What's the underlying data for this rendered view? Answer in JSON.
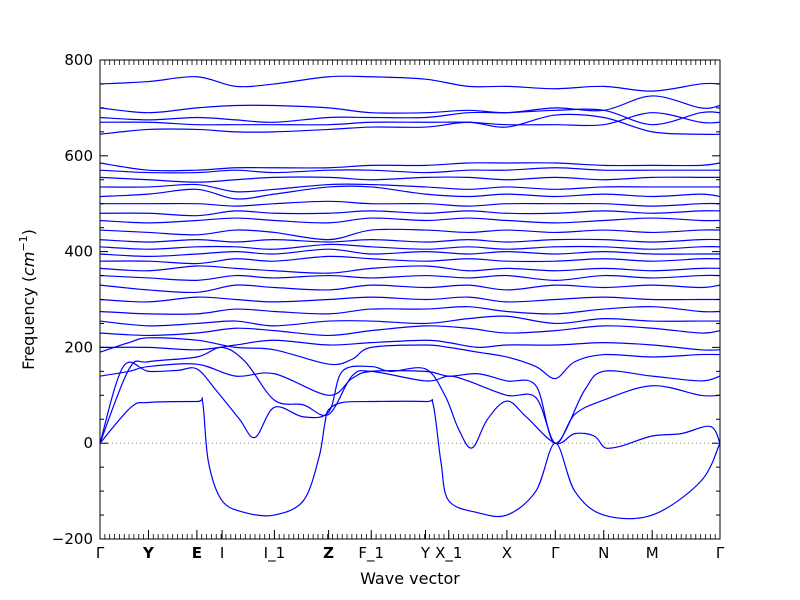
{
  "chart_data": {
    "type": "line",
    "title": "",
    "xlabel": "Wave vector",
    "ylabel": "Frequency (cm⁻¹)",
    "ylabel_main": "Frequency (",
    "ylabel_unit": "cm",
    "ylabel_exp": "−1",
    "ylabel_close": ")",
    "ylim": [
      -200,
      800
    ],
    "xlim": [
      0,
      32
    ],
    "yticks": [
      -200,
      0,
      200,
      400,
      600,
      800
    ],
    "grid": false,
    "legend": "none",
    "zero_line": "dotted",
    "colors": {
      "band": "#0000ff",
      "axis": "#000000",
      "zero": "#808080"
    },
    "xticks": [
      {
        "x": 0,
        "label": "Γ",
        "bold": false
      },
      {
        "x": 2.5,
        "label": "Y",
        "bold": true
      },
      {
        "x": 5,
        "label": "E",
        "bold": true
      },
      {
        "x": 6.3,
        "label": "I",
        "bold": false
      },
      {
        "x": 9,
        "label": "I_1",
        "bold": false
      },
      {
        "x": 11.8,
        "label": "Z",
        "bold": true
      },
      {
        "x": 14,
        "label": "F_1",
        "bold": false
      },
      {
        "x": 16.8,
        "label": "Y",
        "bold": false
      },
      {
        "x": 18,
        "label": "X_1",
        "bold": false
      },
      {
        "x": 21,
        "label": "X",
        "bold": false
      },
      {
        "x": 23.5,
        "label": "Γ",
        "bold": false
      },
      {
        "x": 26,
        "label": "N",
        "bold": false
      },
      {
        "x": 28.5,
        "label": "M",
        "bold": false
      },
      {
        "x": 32,
        "label": "Γ",
        "bold": false
      }
    ],
    "series": [
      {
        "x": [
          0,
          1.6,
          2.5,
          5,
          5.3,
          5.6,
          6.3,
          7.5,
          9,
          10.5,
          11.3,
          11.6,
          11.8,
          12.5,
          14,
          16.8,
          17.2,
          17.6,
          18,
          19.5,
          21,
          22.5,
          23.5,
          24.5,
          26,
          28.5,
          31,
          32
        ],
        "y": [
          0,
          75,
          85,
          87,
          85,
          -40,
          -120,
          -145,
          -150,
          -120,
          -30,
          40,
          70,
          85,
          87,
          87,
          80,
          -40,
          -120,
          -145,
          -150,
          -100,
          0,
          -100,
          -150,
          -150,
          -80,
          0
        ]
      },
      {
        "x": [
          0,
          1.2,
          2.5,
          4,
          5,
          6,
          7.2,
          8,
          9,
          10.5,
          11.8,
          12.5,
          14,
          15,
          16.8,
          17.8,
          18.5,
          19.2,
          20,
          21,
          22,
          23.5,
          24.5,
          25.5,
          26,
          26.4,
          27,
          28.5,
          30,
          31.5,
          32
        ],
        "y": [
          0,
          160,
          150,
          152,
          155,
          110,
          50,
          12,
          75,
          55,
          65,
          150,
          160,
          150,
          155,
          100,
          30,
          -10,
          50,
          88,
          55,
          0,
          20,
          15,
          -8,
          -10,
          -5,
          15,
          20,
          35,
          0
        ]
      },
      {
        "x": [
          0,
          1.5,
          2.5,
          5,
          6.3,
          7.5,
          9,
          10.5,
          11.8,
          13,
          14,
          16.8,
          18,
          19,
          21,
          22.5,
          23.5,
          24.5,
          26,
          28.5,
          31,
          32
        ],
        "y": [
          0,
          155,
          170,
          180,
          200,
          170,
          90,
          80,
          60,
          140,
          150,
          130,
          140,
          130,
          100,
          95,
          0,
          60,
          90,
          120,
          100,
          100
        ]
      },
      {
        "x": [
          0,
          1.5,
          2.5,
          5,
          7,
          9,
          11.8,
          13,
          14,
          16.8,
          18,
          19.5,
          21,
          22.5,
          23.5,
          25,
          26,
          28.5,
          31,
          32
        ],
        "y": [
          140,
          150,
          160,
          165,
          140,
          145,
          100,
          135,
          150,
          150,
          140,
          145,
          130,
          120,
          0,
          110,
          150,
          140,
          130,
          140
        ]
      },
      {
        "x": [
          0,
          1.5,
          2.5,
          5,
          7,
          9,
          11.8,
          13,
          14,
          16.8,
          18,
          19.5,
          21,
          22.5,
          23.5,
          24.5,
          26,
          28.5,
          31,
          32
        ],
        "y": [
          190,
          210,
          220,
          215,
          200,
          195,
          165,
          175,
          200,
          205,
          200,
          190,
          180,
          160,
          135,
          170,
          185,
          180,
          185,
          185
        ]
      },
      {
        "x": [
          0,
          2.5,
          5,
          7,
          9,
          11.8,
          14,
          16.8,
          18,
          19.5,
          21,
          23.5,
          26,
          28.5,
          31,
          32
        ],
        "y": [
          200,
          200,
          195,
          205,
          215,
          205,
          210,
          215,
          210,
          200,
          205,
          205,
          210,
          205,
          195,
          195
        ]
      },
      {
        "x": [
          0,
          2.5,
          5,
          7,
          9,
          11.8,
          14,
          16.8,
          19,
          21,
          23.5,
          26,
          28.5,
          31,
          32
        ],
        "y": [
          230,
          225,
          230,
          240,
          235,
          225,
          235,
          245,
          240,
          230,
          235,
          245,
          240,
          230,
          235
        ]
      },
      {
        "x": [
          0,
          2.5,
          5,
          7,
          9,
          11.8,
          14,
          16.8,
          19,
          21,
          23.5,
          26,
          28.5,
          31,
          32
        ],
        "y": [
          255,
          245,
          250,
          255,
          245,
          255,
          255,
          250,
          260,
          265,
          250,
          260,
          255,
          255,
          255
        ]
      },
      {
        "x": [
          0,
          2.5,
          5,
          7,
          9,
          11.8,
          14,
          16.8,
          19,
          21,
          23.5,
          26,
          28.5,
          31,
          32
        ],
        "y": [
          275,
          270,
          270,
          280,
          275,
          270,
          280,
          280,
          285,
          275,
          270,
          280,
          285,
          275,
          275
        ]
      },
      {
        "x": [
          0,
          2.5,
          5,
          7,
          9,
          11.8,
          14,
          16.8,
          19,
          21,
          23.5,
          26,
          28.5,
          31,
          32
        ],
        "y": [
          300,
          295,
          305,
          300,
          295,
          300,
          305,
          300,
          305,
          295,
          300,
          305,
          300,
          300,
          300
        ]
      },
      {
        "x": [
          0,
          2.5,
          5,
          7,
          9,
          11.8,
          14,
          16.8,
          19,
          21,
          23.5,
          26,
          28.5,
          31,
          32
        ],
        "y": [
          330,
          320,
          315,
          330,
          325,
          320,
          330,
          325,
          330,
          320,
          330,
          325,
          330,
          325,
          330
        ]
      },
      {
        "x": [
          0,
          2.5,
          5,
          7,
          9,
          11.8,
          14,
          16.8,
          19,
          21,
          23.5,
          26,
          28.5,
          31,
          32
        ],
        "y": [
          350,
          345,
          340,
          350,
          345,
          350,
          345,
          350,
          345,
          350,
          340,
          350,
          345,
          350,
          350
        ]
      },
      {
        "x": [
          0,
          2.5,
          5,
          7,
          9,
          11.8,
          14,
          16.8,
          19,
          21,
          23.5,
          26,
          28.5,
          31,
          32
        ],
        "y": [
          365,
          360,
          370,
          365,
          360,
          355,
          365,
          370,
          360,
          365,
          360,
          365,
          360,
          365,
          365
        ]
      },
      {
        "x": [
          0,
          2.5,
          5,
          7,
          9,
          11.8,
          14,
          16.8,
          19,
          21,
          23.5,
          26,
          28.5,
          31,
          32
        ],
        "y": [
          380,
          380,
          375,
          385,
          380,
          390,
          385,
          380,
          385,
          380,
          380,
          385,
          380,
          385,
          385
        ]
      },
      {
        "x": [
          0,
          2.5,
          5,
          7,
          9,
          11.8,
          14,
          16.8,
          19,
          21,
          23.5,
          26,
          28.5,
          31,
          32
        ],
        "y": [
          395,
          390,
          395,
          400,
          395,
          405,
          395,
          400,
          395,
          400,
          395,
          400,
          395,
          395,
          395
        ]
      },
      {
        "x": [
          0,
          2.5,
          5,
          7,
          9,
          11.8,
          14,
          16.8,
          19,
          21,
          23.5,
          26,
          28.5,
          31,
          32
        ],
        "y": [
          410,
          405,
          410,
          410,
          405,
          415,
          410,
          405,
          410,
          405,
          410,
          410,
          405,
          410,
          410
        ]
      },
      {
        "x": [
          0,
          2.5,
          5,
          7,
          9,
          11.8,
          14,
          16.8,
          19,
          21,
          23.5,
          26,
          28.5,
          31,
          32
        ],
        "y": [
          425,
          420,
          425,
          420,
          425,
          420,
          425,
          420,
          425,
          420,
          425,
          425,
          420,
          425,
          425
        ]
      },
      {
        "x": [
          0,
          2.5,
          5,
          7,
          9,
          11.8,
          14,
          16.8,
          19,
          21,
          23.5,
          26,
          28.5,
          31,
          32
        ],
        "y": [
          445,
          440,
          435,
          445,
          440,
          425,
          445,
          445,
          440,
          445,
          440,
          445,
          440,
          445,
          445
        ]
      },
      {
        "x": [
          0,
          2.5,
          5,
          7,
          9,
          11.8,
          14,
          16.8,
          19,
          21,
          23.5,
          26,
          28.5,
          31,
          32
        ],
        "y": [
          465,
          460,
          465,
          470,
          465,
          460,
          470,
          465,
          470,
          465,
          460,
          465,
          470,
          465,
          465
        ]
      },
      {
        "x": [
          0,
          2.5,
          5,
          7,
          9,
          11.8,
          14,
          16.8,
          19,
          21,
          23.5,
          26,
          28.5,
          31,
          32
        ],
        "y": [
          480,
          480,
          475,
          485,
          480,
          480,
          485,
          480,
          485,
          480,
          480,
          485,
          480,
          485,
          485
        ]
      },
      {
        "x": [
          0,
          2.5,
          5,
          7,
          9,
          11.8,
          14,
          16.8,
          19,
          21,
          23.5,
          26,
          28.5,
          31,
          32
        ],
        "y": [
          500,
          500,
          500,
          495,
          500,
          505,
          500,
          500,
          495,
          500,
          500,
          500,
          495,
          500,
          500
        ]
      },
      {
        "x": [
          0,
          2.5,
          5,
          7,
          9,
          11.8,
          14,
          16.8,
          19,
          21,
          23.5,
          26,
          28.5,
          31,
          32
        ],
        "y": [
          515,
          520,
          530,
          510,
          520,
          535,
          535,
          520,
          515,
          520,
          515,
          520,
          515,
          520,
          515
        ]
      },
      {
        "x": [
          0,
          2.5,
          5,
          7,
          9,
          11.8,
          14,
          16.8,
          19,
          21,
          23.5,
          26,
          28.5,
          31,
          32
        ],
        "y": [
          535,
          535,
          540,
          525,
          530,
          540,
          540,
          535,
          530,
          535,
          530,
          535,
          535,
          535,
          535
        ]
      },
      {
        "x": [
          0,
          2.5,
          5,
          7,
          9,
          11.8,
          14,
          16.8,
          19,
          21,
          23.5,
          26,
          28.5,
          31,
          32
        ],
        "y": [
          555,
          550,
          545,
          550,
          555,
          555,
          550,
          555,
          555,
          550,
          555,
          550,
          555,
          555,
          555
        ]
      },
      {
        "x": [
          0,
          2.5,
          5,
          7,
          9,
          11.8,
          14,
          16.8,
          19,
          21,
          23.5,
          26,
          28.5,
          31,
          32
        ],
        "y": [
          570,
          565,
          565,
          570,
          565,
          570,
          570,
          565,
          570,
          570,
          575,
          570,
          570,
          570,
          570
        ]
      },
      {
        "x": [
          0,
          2.5,
          5,
          7,
          9,
          11.8,
          14,
          16.8,
          19,
          21,
          23.5,
          26,
          28.5,
          31,
          32
        ],
        "y": [
          585,
          570,
          570,
          575,
          575,
          575,
          580,
          580,
          585,
          585,
          585,
          580,
          580,
          580,
          585
        ]
      },
      {
        "x": [
          0,
          2.5,
          5,
          7,
          9,
          11.8,
          14,
          16.8,
          19,
          21,
          23.5,
          26,
          28.5,
          31,
          32
        ],
        "y": [
          645,
          655,
          655,
          650,
          650,
          655,
          660,
          660,
          670,
          660,
          685,
          680,
          650,
          645,
          645
        ]
      },
      {
        "x": [
          0,
          2.5,
          5,
          7,
          9,
          11.8,
          14,
          16.8,
          19,
          21,
          23.5,
          26,
          28.5,
          31,
          32
        ],
        "y": [
          670,
          670,
          665,
          665,
          665,
          665,
          670,
          670,
          670,
          665,
          665,
          665,
          690,
          670,
          670
        ]
      },
      {
        "x": [
          0,
          2.5,
          5,
          7,
          9,
          11.8,
          14,
          16.8,
          19,
          21,
          23.5,
          26,
          28.5,
          31,
          32
        ],
        "y": [
          680,
          675,
          680,
          675,
          670,
          680,
          680,
          680,
          690,
          690,
          695,
          695,
          665,
          690,
          690
        ]
      },
      {
        "x": [
          0,
          2.5,
          5,
          7,
          9,
          11.8,
          14,
          16.8,
          19,
          21,
          23.5,
          26,
          28.5,
          31,
          32
        ],
        "y": [
          700,
          690,
          700,
          705,
          705,
          700,
          690,
          690,
          695,
          690,
          700,
          695,
          725,
          700,
          705
        ]
      },
      {
        "x": [
          0,
          2.5,
          5,
          7,
          9,
          11.8,
          14,
          16.8,
          19,
          21,
          23.5,
          26,
          28.5,
          31,
          32
        ],
        "y": [
          750,
          755,
          765,
          745,
          750,
          765,
          765,
          760,
          745,
          745,
          740,
          745,
          735,
          750,
          750
        ]
      }
    ]
  }
}
